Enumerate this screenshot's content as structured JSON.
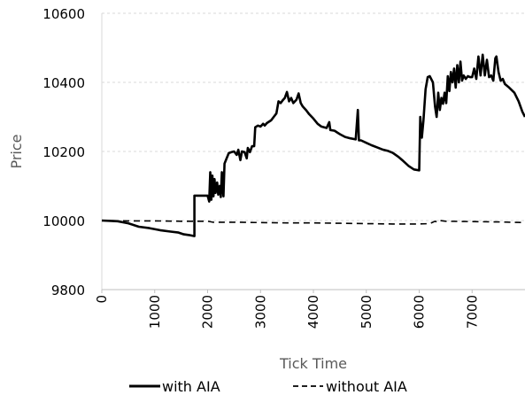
{
  "chart_data": {
    "type": "line",
    "title": "",
    "xlabel": "Tick Time",
    "ylabel": "Price",
    "xlim": [
      0,
      8000
    ],
    "ylim": [
      9800,
      10600
    ],
    "x_ticks": [
      0,
      1000,
      2000,
      3000,
      4000,
      5000,
      6000,
      7000
    ],
    "y_ticks": [
      9800,
      10000,
      10200,
      10400,
      10600
    ],
    "grid": "horizontal dashed",
    "legend_position": "bottom",
    "series": [
      {
        "name": "with AIA",
        "style": "solid",
        "color": "#000000",
        "points": [
          [
            0,
            10000
          ],
          [
            300,
            9998
          ],
          [
            500,
            9992
          ],
          [
            700,
            9982
          ],
          [
            900,
            9978
          ],
          [
            1100,
            9972
          ],
          [
            1300,
            9968
          ],
          [
            1450,
            9965
          ],
          [
            1550,
            9960
          ],
          [
            1650,
            9958
          ],
          [
            1750,
            9955
          ],
          [
            1750,
            10072
          ],
          [
            2000,
            10072
          ],
          [
            2030,
            10055
          ],
          [
            2050,
            10140
          ],
          [
            2070,
            10060
          ],
          [
            2090,
            10130
          ],
          [
            2110,
            10070
          ],
          [
            2130,
            10120
          ],
          [
            2150,
            10080
          ],
          [
            2180,
            10110
          ],
          [
            2200,
            10075
          ],
          [
            2230,
            10100
          ],
          [
            2250,
            10068
          ],
          [
            2270,
            10140
          ],
          [
            2300,
            10070
          ],
          [
            2320,
            10165
          ],
          [
            2360,
            10180
          ],
          [
            2400,
            10195
          ],
          [
            2450,
            10198
          ],
          [
            2500,
            10200
          ],
          [
            2550,
            10190
          ],
          [
            2580,
            10205
          ],
          [
            2620,
            10175
          ],
          [
            2650,
            10200
          ],
          [
            2700,
            10198
          ],
          [
            2740,
            10180
          ],
          [
            2760,
            10210
          ],
          [
            2800,
            10198
          ],
          [
            2840,
            10215
          ],
          [
            2880,
            10215
          ],
          [
            2900,
            10270
          ],
          [
            2950,
            10275
          ],
          [
            3000,
            10272
          ],
          [
            3050,
            10280
          ],
          [
            3080,
            10275
          ],
          [
            3120,
            10282
          ],
          [
            3200,
            10290
          ],
          [
            3250,
            10300
          ],
          [
            3300,
            10310
          ],
          [
            3340,
            10345
          ],
          [
            3380,
            10340
          ],
          [
            3420,
            10348
          ],
          [
            3460,
            10355
          ],
          [
            3500,
            10372
          ],
          [
            3540,
            10345
          ],
          [
            3580,
            10355
          ],
          [
            3620,
            10340
          ],
          [
            3680,
            10350
          ],
          [
            3720,
            10368
          ],
          [
            3760,
            10340
          ],
          [
            3800,
            10330
          ],
          [
            3860,
            10320
          ],
          [
            3920,
            10308
          ],
          [
            4000,
            10295
          ],
          [
            4080,
            10280
          ],
          [
            4150,
            10272
          ],
          [
            4250,
            10268
          ],
          [
            4300,
            10285
          ],
          [
            4320,
            10262
          ],
          [
            4400,
            10260
          ],
          [
            4500,
            10250
          ],
          [
            4600,
            10242
          ],
          [
            4700,
            10238
          ],
          [
            4800,
            10235
          ],
          [
            4840,
            10320
          ],
          [
            4860,
            10232
          ],
          [
            4900,
            10232
          ],
          [
            5000,
            10225
          ],
          [
            5100,
            10218
          ],
          [
            5200,
            10212
          ],
          [
            5300,
            10206
          ],
          [
            5400,
            10202
          ],
          [
            5500,
            10196
          ],
          [
            5600,
            10185
          ],
          [
            5700,
            10172
          ],
          [
            5800,
            10158
          ],
          [
            5900,
            10148
          ],
          [
            6000,
            10145
          ],
          [
            6020,
            10300
          ],
          [
            6050,
            10240
          ],
          [
            6080,
            10290
          ],
          [
            6120,
            10380
          ],
          [
            6160,
            10415
          ],
          [
            6200,
            10418
          ],
          [
            6260,
            10400
          ],
          [
            6300,
            10330
          ],
          [
            6330,
            10300
          ],
          [
            6360,
            10370
          ],
          [
            6390,
            10320
          ],
          [
            6420,
            10355
          ],
          [
            6450,
            10338
          ],
          [
            6480,
            10370
          ],
          [
            6510,
            10340
          ],
          [
            6540,
            10418
          ],
          [
            6570,
            10375
          ],
          [
            6600,
            10430
          ],
          [
            6630,
            10400
          ],
          [
            6660,
            10440
          ],
          [
            6690,
            10385
          ],
          [
            6720,
            10450
          ],
          [
            6750,
            10400
          ],
          [
            6780,
            10460
          ],
          [
            6810,
            10405
          ],
          [
            6840,
            10420
          ],
          [
            6880,
            10410
          ],
          [
            6920,
            10418
          ],
          [
            6960,
            10415
          ],
          [
            7000,
            10415
          ],
          [
            7040,
            10440
          ],
          [
            7080,
            10410
          ],
          [
            7120,
            10475
          ],
          [
            7160,
            10420
          ],
          [
            7200,
            10480
          ],
          [
            7240,
            10420
          ],
          [
            7280,
            10465
          ],
          [
            7320,
            10415
          ],
          [
            7360,
            10420
          ],
          [
            7400,
            10405
          ],
          [
            7440,
            10470
          ],
          [
            7460,
            10475
          ],
          [
            7500,
            10430
          ],
          [
            7540,
            10405
          ],
          [
            7580,
            10410
          ],
          [
            7620,
            10395
          ],
          [
            7700,
            10385
          ],
          [
            7800,
            10370
          ],
          [
            7880,
            10345
          ],
          [
            7950,
            10315
          ],
          [
            8000,
            10300
          ]
        ]
      },
      {
        "name": "without AIA",
        "style": "dashed",
        "color": "#000000",
        "points": [
          [
            0,
            10000
          ],
          [
            500,
            9999
          ],
          [
            1000,
            9999
          ],
          [
            1500,
            9998
          ],
          [
            2000,
            9998
          ],
          [
            2100,
            9995
          ],
          [
            2500,
            9995
          ],
          [
            3000,
            9994
          ],
          [
            3500,
            9993
          ],
          [
            4000,
            9993
          ],
          [
            4500,
            9992
          ],
          [
            5000,
            9991
          ],
          [
            5500,
            9990
          ],
          [
            6000,
            9990
          ],
          [
            6200,
            9991
          ],
          [
            6300,
            9998
          ],
          [
            6350,
            9995
          ],
          [
            6400,
            10000
          ],
          [
            6500,
            9998
          ],
          [
            7000,
            9997
          ],
          [
            7500,
            9996
          ],
          [
            8000,
            9994
          ]
        ]
      }
    ]
  }
}
